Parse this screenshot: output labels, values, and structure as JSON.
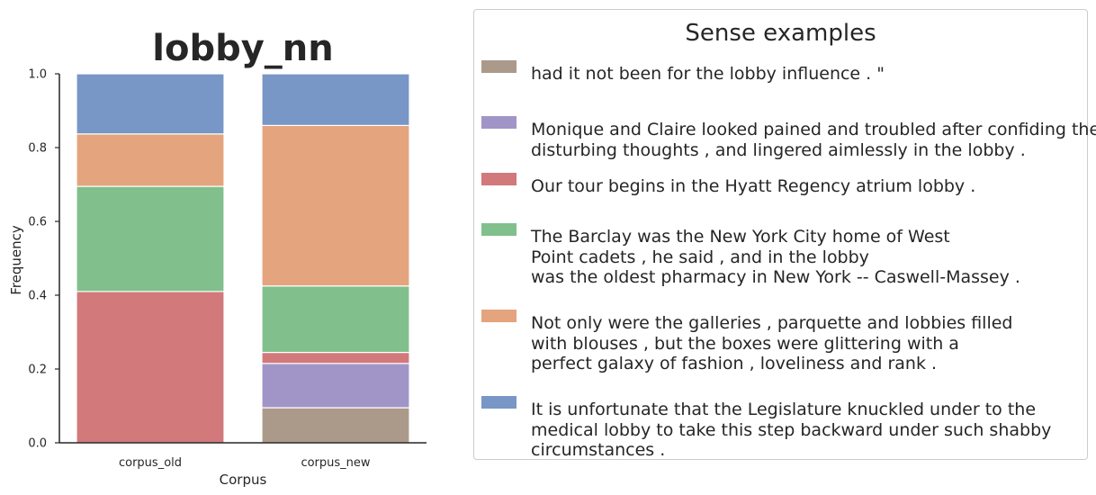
{
  "chart_data": {
    "type": "bar",
    "stacked": true,
    "title": "lobby_nn",
    "xlabel": "Corpus",
    "ylabel": "Frequency",
    "ylim": [
      0,
      1.0
    ],
    "yticks": [
      "0.0",
      "0.2",
      "0.4",
      "0.6",
      "0.8",
      "1.0"
    ],
    "categories": [
      "corpus_old",
      "corpus_new"
    ],
    "series": [
      {
        "name": "had it not been for the lobby influence . \"",
        "color": "#ab9a8a",
        "values": [
          0.0,
          0.095
        ]
      },
      {
        "name": "Monique and Claire looked pained and troubled after confiding these\ndisturbing thoughts , and lingered aimlessly in the lobby .",
        "color": "#a195c8",
        "values": [
          0.0,
          0.12
        ]
      },
      {
        "name": "Our tour begins in the Hyatt Regency atrium lobby .",
        "color": "#d2797b",
        "values": [
          0.41,
          0.03
        ]
      },
      {
        "name": "The Barclay was the New York City home of West\nPoint cadets , he said , and in the lobby\nwas the oldest pharmacy in New York -- Caswell-Massey .",
        "color": "#81bf8d",
        "values": [
          0.285,
          0.18
        ]
      },
      {
        "name": "Not only were the galleries , parquette and lobbies filled\nwith blouses , but the boxes were glittering with a\nperfect galaxy of fashion , loveliness and rank .",
        "color": "#e4a47e",
        "values": [
          0.142,
          0.435
        ]
      },
      {
        "name": "It is unfortunate that the Legislature knuckled under to the\nmedical lobby to take this step backward under such shabby\ncircumstances .",
        "color": "#7896c6",
        "values": [
          0.163,
          0.14
        ]
      }
    ],
    "legend_title": "Sense examples",
    "legend_placement": "right"
  }
}
